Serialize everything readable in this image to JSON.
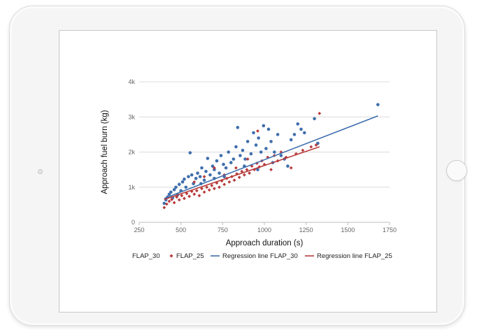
{
  "colors": {
    "flap30": "#3f6fad",
    "flap25": "#b83a3a",
    "grid": "#dcdcdc",
    "axis": "#bdbdbd"
  },
  "device": {
    "home_button": "home-button",
    "camera": "camera-dot"
  },
  "chart_data": {
    "type": "scatter",
    "xlabel": "Approach duration (s)",
    "ylabel": "Approach fuel burn (kg)",
    "xlim": [
      250,
      1750
    ],
    "ylim": [
      0,
      4000
    ],
    "x_ticks": [
      250,
      500,
      750,
      1000,
      1250,
      1500,
      1750
    ],
    "x_tick_labels": [
      "250",
      "500",
      "750",
      "1000",
      "1250",
      "1500",
      "1750"
    ],
    "y_ticks": [
      0,
      1000,
      2000,
      3000,
      4000
    ],
    "y_tick_labels": [
      "0",
      "1k",
      "2k",
      "3k",
      "4k"
    ],
    "grid": "horizontal",
    "legend_position": "bottom",
    "legend": [
      "FLAP_30",
      "FLAP_25",
      "Regression line FLAP_30",
      "Regression line FLAP_25"
    ],
    "series": [
      {
        "name": "FLAP_30",
        "kind": "scatter",
        "color": "#3f6fad",
        "points": [
          [
            400,
            540
          ],
          [
            410,
            640
          ],
          [
            420,
            720
          ],
          [
            430,
            800
          ],
          [
            440,
            860
          ],
          [
            450,
            700
          ],
          [
            460,
            930
          ],
          [
            470,
            1000
          ],
          [
            480,
            780
          ],
          [
            490,
            1080
          ],
          [
            500,
            900
          ],
          [
            510,
            1150
          ],
          [
            520,
            1230
          ],
          [
            530,
            1000
          ],
          [
            545,
            1300
          ],
          [
            555,
            1980
          ],
          [
            565,
            1350
          ],
          [
            575,
            1100
          ],
          [
            590,
            1250
          ],
          [
            600,
            1400
          ],
          [
            615,
            1300
          ],
          [
            625,
            1550
          ],
          [
            640,
            1200
          ],
          [
            650,
            1450
          ],
          [
            660,
            1820
          ],
          [
            675,
            1350
          ],
          [
            690,
            1600
          ],
          [
            700,
            1500
          ],
          [
            715,
            1750
          ],
          [
            730,
            1400
          ],
          [
            740,
            1900
          ],
          [
            755,
            1650
          ],
          [
            770,
            1550
          ],
          [
            785,
            2000
          ],
          [
            800,
            1700
          ],
          [
            815,
            1800
          ],
          [
            830,
            2150
          ],
          [
            840,
            2700
          ],
          [
            855,
            1900
          ],
          [
            870,
            2050
          ],
          [
            885,
            1800
          ],
          [
            900,
            2300
          ],
          [
            920,
            1950
          ],
          [
            935,
            2550
          ],
          [
            950,
            2200
          ],
          [
            965,
            2400
          ],
          [
            980,
            2000
          ],
          [
            995,
            2750
          ],
          [
            1010,
            2100
          ],
          [
            1025,
            2650
          ],
          [
            1040,
            2300
          ],
          [
            1060,
            2000
          ],
          [
            1080,
            2500
          ],
          [
            1100,
            1900
          ],
          [
            1120,
            1800
          ],
          [
            1140,
            1600
          ],
          [
            1160,
            2350
          ],
          [
            1180,
            2500
          ],
          [
            1200,
            2800
          ],
          [
            1220,
            2650
          ],
          [
            1240,
            2550
          ],
          [
            1300,
            2950
          ],
          [
            1320,
            2250
          ],
          [
            1680,
            3350
          ],
          [
            620,
            1100
          ],
          [
            700,
            1250
          ],
          [
            760,
            1300
          ],
          [
            880,
            1600
          ],
          [
            960,
            1500
          ],
          [
            1050,
            1700
          ]
        ]
      },
      {
        "name": "FLAP_25",
        "kind": "scatter",
        "color": "#b83a3a",
        "points": [
          [
            400,
            420
          ],
          [
            415,
            520
          ],
          [
            430,
            600
          ],
          [
            445,
            650
          ],
          [
            460,
            560
          ],
          [
            475,
            720
          ],
          [
            490,
            640
          ],
          [
            505,
            760
          ],
          [
            520,
            680
          ],
          [
            535,
            820
          ],
          [
            550,
            740
          ],
          [
            565,
            880
          ],
          [
            580,
            800
          ],
          [
            595,
            900
          ],
          [
            610,
            760
          ],
          [
            625,
            960
          ],
          [
            640,
            860
          ],
          [
            655,
            1000
          ],
          [
            670,
            920
          ],
          [
            685,
            1050
          ],
          [
            700,
            960
          ],
          [
            715,
            1120
          ],
          [
            730,
            1000
          ],
          [
            745,
            1180
          ],
          [
            760,
            1080
          ],
          [
            775,
            1250
          ],
          [
            790,
            1150
          ],
          [
            805,
            1300
          ],
          [
            820,
            1200
          ],
          [
            835,
            1380
          ],
          [
            850,
            1280
          ],
          [
            865,
            1450
          ],
          [
            880,
            1350
          ],
          [
            895,
            1500
          ],
          [
            910,
            1400
          ],
          [
            925,
            1600
          ],
          [
            940,
            1500
          ],
          [
            955,
            1680
          ],
          [
            970,
            1580
          ],
          [
            985,
            1750
          ],
          [
            1000,
            1650
          ],
          [
            1020,
            1850
          ],
          [
            1040,
            1500
          ],
          [
            1060,
            1900
          ],
          [
            1080,
            1750
          ],
          [
            1100,
            2000
          ],
          [
            1130,
            1850
          ],
          [
            1160,
            1550
          ],
          [
            1190,
            1950
          ],
          [
            1230,
            2050
          ],
          [
            1280,
            2150
          ],
          [
            1330,
            3100
          ],
          [
            1310,
            2200
          ],
          [
            960,
            2600
          ],
          [
            900,
            1800
          ],
          [
            830,
            1550
          ],
          [
            760,
            1350
          ],
          [
            700,
            1550
          ],
          [
            640,
            1300
          ],
          [
            580,
            1150
          ]
        ]
      },
      {
        "name": "Regression line FLAP_30",
        "kind": "line",
        "color": "#3f6fad",
        "x": [
          400,
          1680
        ],
        "y": [
          680,
          3030
        ]
      },
      {
        "name": "Regression line FLAP_25",
        "kind": "line",
        "color": "#b83a3a",
        "x": [
          400,
          1330
        ],
        "y": [
          650,
          2150
        ]
      }
    ]
  }
}
